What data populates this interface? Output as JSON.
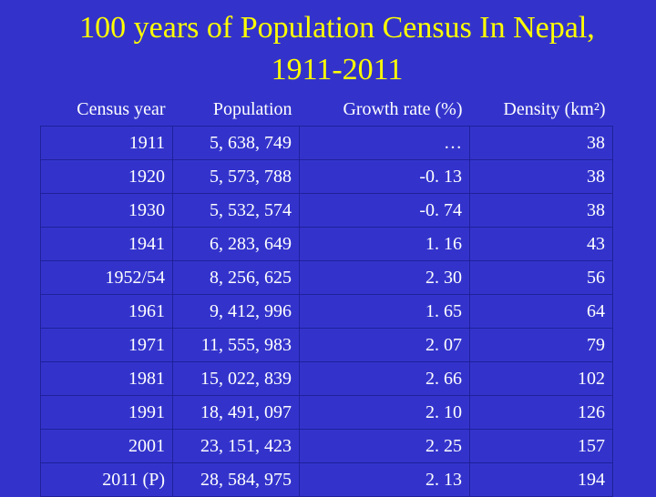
{
  "title": {
    "line1": "100 years of Population Census In Nepal,",
    "line2": "1911-2011"
  },
  "table": {
    "headers": [
      "Census year",
      "Population",
      "Growth rate (%)",
      "Density (km²)"
    ],
    "rows": [
      [
        "1911",
        "5, 638, 749",
        "…",
        "38"
      ],
      [
        "1920",
        "5, 573, 788",
        "-0. 13",
        "38"
      ],
      [
        "1930",
        "5, 532, 574",
        "-0. 74",
        "38"
      ],
      [
        "1941",
        "6, 283, 649",
        "1. 16",
        "43"
      ],
      [
        "1952/54",
        "8, 256, 625",
        "2. 30",
        "56"
      ],
      [
        "1961",
        "9, 412, 996",
        "1. 65",
        "64"
      ],
      [
        "1971",
        "11, 555, 983",
        "2. 07",
        "79"
      ],
      [
        "1981",
        "15, 022, 839",
        "2. 66",
        "102"
      ],
      [
        "1991",
        "18, 491, 097",
        "2. 10",
        "126"
      ],
      [
        "2001",
        "23, 151, 423",
        "2. 25",
        "157"
      ],
      [
        "2011 (P)",
        "28, 584, 975",
        "2. 13",
        "194"
      ]
    ]
  },
  "colors": {
    "background": "#3333cc",
    "title": "#ffff00",
    "text": "#ffffff"
  }
}
